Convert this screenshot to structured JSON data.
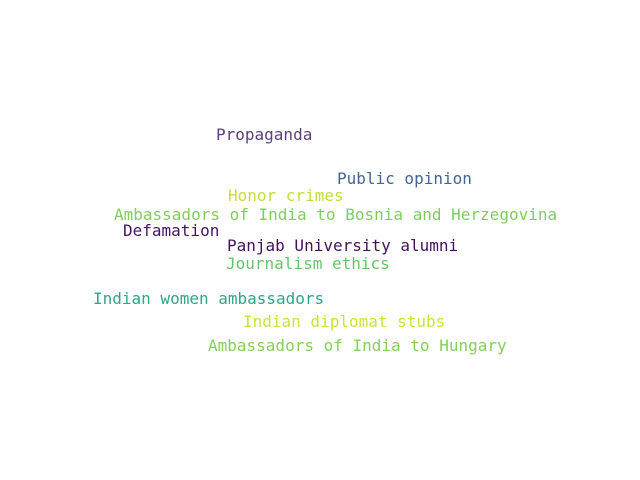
{
  "words": [
    {
      "text": "Propaganda",
      "color": "#5c3f7f"
    },
    {
      "text": "Public opinion",
      "color": "#45648e"
    },
    {
      "text": "Honor crimes",
      "color": "#c5dc3e"
    },
    {
      "text": "Ambassadors of India to Bosnia and Herzegovina",
      "color": "#7ece5f"
    },
    {
      "text": "Defamation",
      "color": "#45136a"
    },
    {
      "text": "Panjab University alumni",
      "color": "#43115f"
    },
    {
      "text": "Journalism ethics",
      "color": "#64c66b"
    },
    {
      "text": "Indian women ambassadors",
      "color": "#2ea787"
    },
    {
      "text": "Indian diplomat stubs",
      "color": "#cde336"
    },
    {
      "text": "Ambassadors of India to Hungary",
      "color": "#84d158"
    }
  ]
}
